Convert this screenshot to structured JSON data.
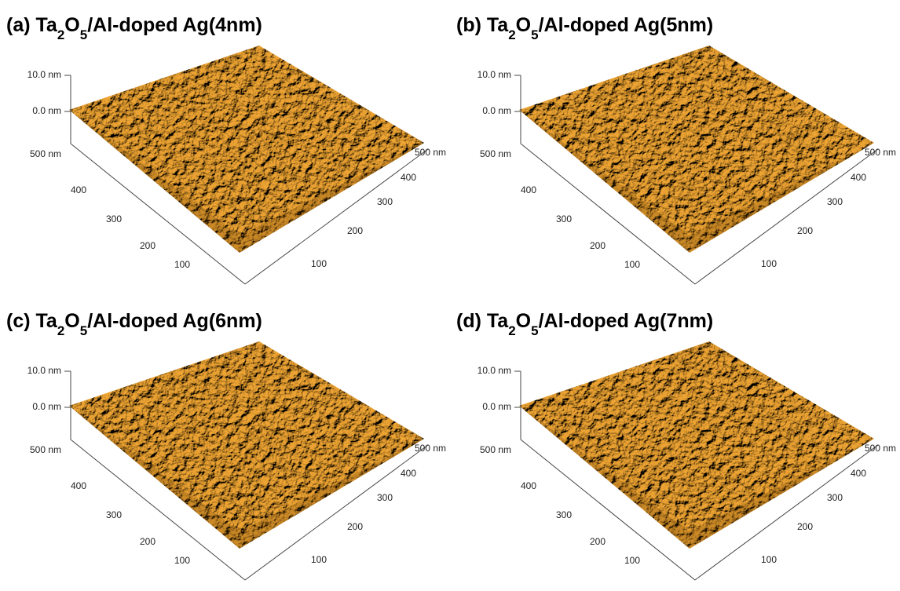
{
  "panels": [
    {
      "title_parts": [
        "(a) Ta",
        "2",
        "O",
        "5",
        "/Al-doped Ag(4nm)"
      ],
      "z_labels": [
        "10.0 nm",
        "0.0 nm"
      ],
      "x_labels": [
        "500 nm",
        "400",
        "300",
        "200",
        "100"
      ],
      "y_labels": [
        "500 nm",
        "400",
        "300",
        "200",
        "100"
      ]
    },
    {
      "title_parts": [
        "(b) Ta",
        "2",
        "O",
        "5",
        "/Al-doped Ag(5nm)"
      ],
      "z_labels": [
        "10.0 nm",
        "0.0 nm"
      ],
      "x_labels": [
        "500 nm",
        "400",
        "300",
        "200",
        "100"
      ],
      "y_labels": [
        "500 nm",
        "400",
        "300",
        "200",
        "100"
      ]
    },
    {
      "title_parts": [
        "(c) Ta",
        "2",
        "O",
        "5",
        "/Al-doped Ag(6nm)"
      ],
      "z_labels": [
        "10.0 nm",
        "0.0 nm"
      ],
      "x_labels": [
        "500 nm",
        "400",
        "300",
        "200",
        "100"
      ],
      "y_labels": [
        "500 nm",
        "400",
        "300",
        "200",
        "100"
      ]
    },
    {
      "title_parts": [
        "(d) Ta",
        "2",
        "O",
        "5",
        "/Al-doped Ag(7nm)"
      ],
      "z_labels": [
        "10.0 nm",
        "0.0 nm"
      ],
      "x_labels": [
        "500 nm",
        "400",
        "300",
        "200",
        "100"
      ],
      "y_labels": [
        "500 nm",
        "400",
        "300",
        "200",
        "100"
      ]
    }
  ]
}
